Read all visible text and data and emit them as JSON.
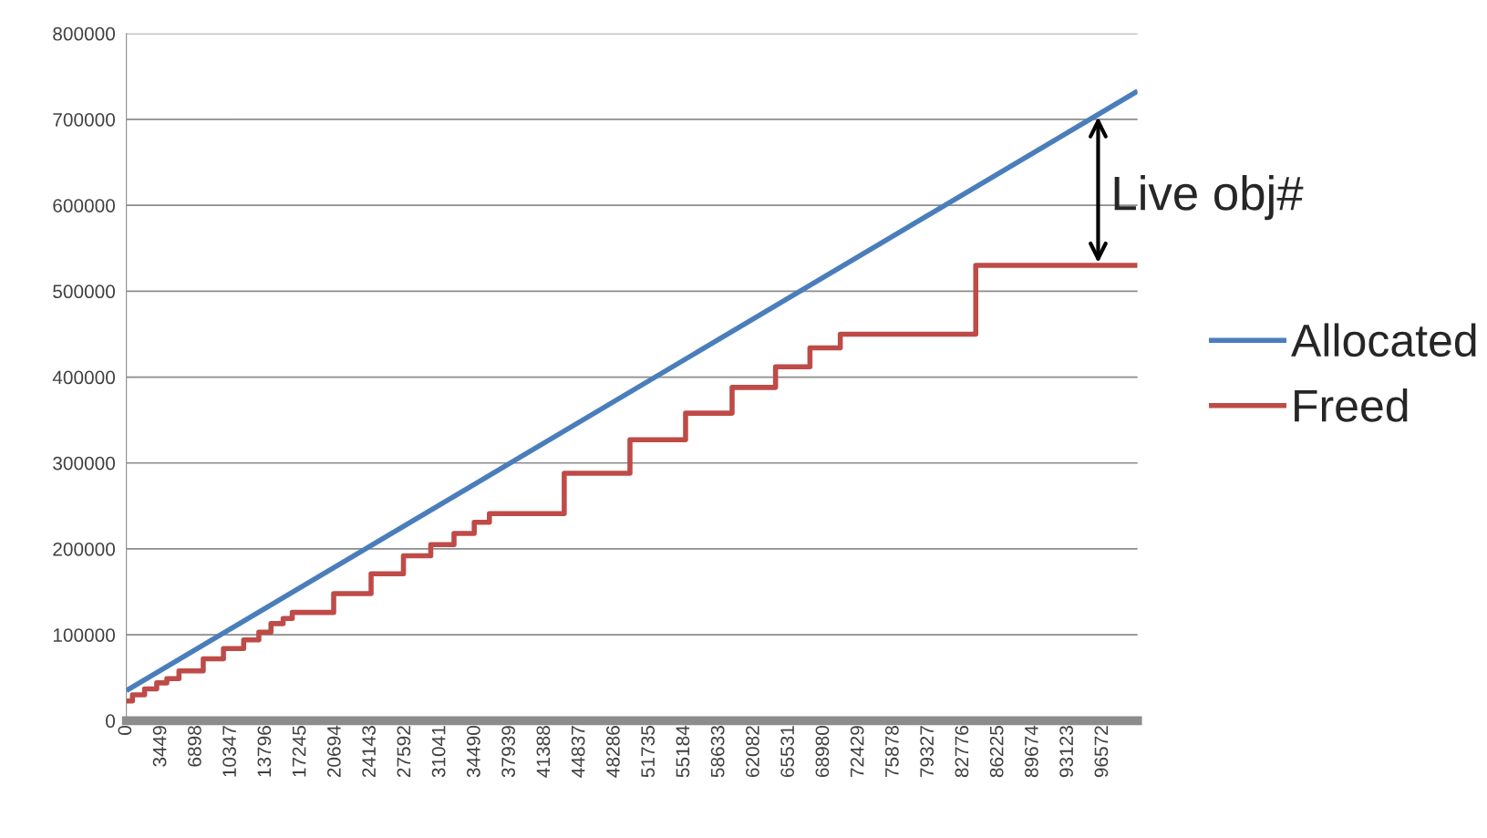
{
  "chart_data": {
    "type": "line",
    "series": [
      {
        "name": "Allocated",
        "color": "#4a7ebb",
        "x": [
          0,
          100000
        ],
        "values": [
          35000,
          733000
        ]
      },
      {
        "name": "Freed",
        "color": "#be4b48",
        "type": "step",
        "x": [
          0,
          600,
          1800,
          3000,
          4000,
          5200,
          7600,
          9600,
          11600,
          13100,
          14300,
          15500,
          16400,
          20500,
          24200,
          27400,
          30100,
          32400,
          34400,
          35900,
          43300,
          49800,
          55300,
          59900,
          64200,
          67600,
          70600,
          84000,
          100000
        ],
        "values": [
          23000,
          30000,
          37000,
          44000,
          49000,
          58000,
          72000,
          84000,
          94000,
          103000,
          113000,
          119000,
          126000,
          148000,
          171000,
          192000,
          205000,
          218000,
          231000,
          241000,
          288000,
          327000,
          358000,
          388000,
          412000,
          434000,
          450000,
          530000,
          530000
        ]
      }
    ],
    "xlim": [
      0,
      100000
    ],
    "xticks": [
      0,
      3449,
      6898,
      10347,
      13796,
      17245,
      20694,
      24143,
      27592,
      31041,
      34490,
      37939,
      41388,
      44837,
      48286,
      51735,
      55184,
      58633,
      62082,
      65531,
      68980,
      72429,
      75878,
      79327,
      82776,
      86225,
      89674,
      93123,
      96572
    ],
    "ylim": [
      0,
      800000
    ],
    "yticks": [
      0,
      100000,
      200000,
      300000,
      400000,
      500000,
      600000,
      700000,
      800000
    ],
    "grid": "y",
    "legend": "right",
    "annotations": [
      {
        "text": "Live obj#",
        "x": 96100,
        "y": 530000
      }
    ]
  }
}
